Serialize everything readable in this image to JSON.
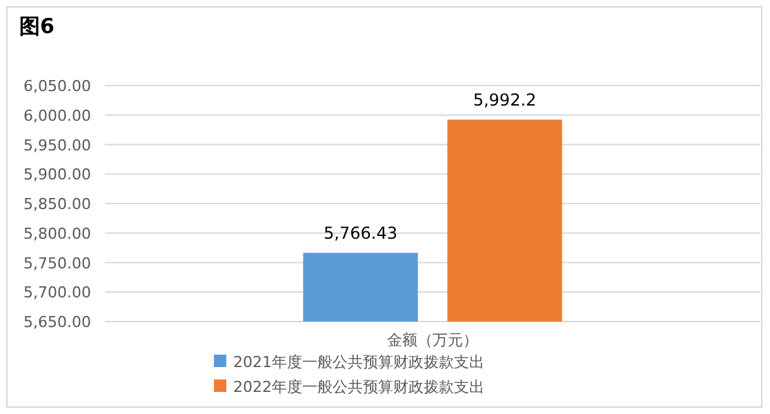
{
  "chart_data": {
    "type": "bar",
    "title": "图6",
    "categories": [
      "金额（万元）"
    ],
    "series": [
      {
        "name": "2021年度一般公共预算财政拨款支出",
        "color": "#5b9bd5",
        "values": [
          5766.43
        ],
        "value_labels": [
          "5,766.43"
        ]
      },
      {
        "name": "2022年度一般公共预算财政拨款支出",
        "color": "#ed7d31",
        "values": [
          5992.2
        ],
        "value_labels": [
          "5,992.2"
        ]
      }
    ],
    "ylim": [
      5650,
      6050
    ],
    "yticks": [
      {
        "value": 5650,
        "label": "5,650.00"
      },
      {
        "value": 5700,
        "label": "5,700.00"
      },
      {
        "value": 5750,
        "label": "5,750.00"
      },
      {
        "value": 5800,
        "label": "5,800.00"
      },
      {
        "value": 5850,
        "label": "5,850.00"
      },
      {
        "value": 5900,
        "label": "5,900.00"
      },
      {
        "value": 5950,
        "label": "5,950.00"
      },
      {
        "value": 6000,
        "label": "6,000.00"
      },
      {
        "value": 6050,
        "label": "6,050.00"
      }
    ],
    "grid": "y",
    "legend": "bottom"
  }
}
